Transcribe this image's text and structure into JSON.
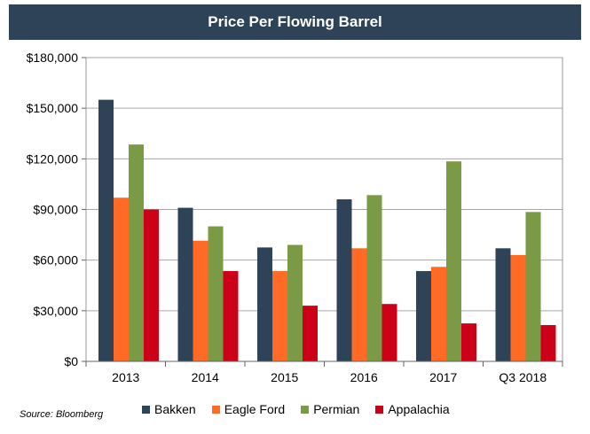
{
  "chart_data": {
    "type": "bar",
    "title": "Price Per Flowing Barrel",
    "categories": [
      "2013",
      "2014",
      "2015",
      "2016",
      "2017",
      "Q3 2018"
    ],
    "series": [
      {
        "name": "Bakken",
        "color": "#2e4358",
        "values": [
          155000,
          91000,
          67500,
          96000,
          53500,
          67000
        ]
      },
      {
        "name": "Eagle Ford",
        "color": "#ff6a24",
        "values": [
          97000,
          71500,
          53500,
          67000,
          56000,
          63000
        ]
      },
      {
        "name": "Permian",
        "color": "#7a9a45",
        "values": [
          128500,
          80000,
          69000,
          98500,
          118500,
          88500
        ]
      },
      {
        "name": "Appalachia",
        "color": "#cc0016",
        "values": [
          90000,
          53500,
          33000,
          34000,
          22500,
          21500
        ]
      }
    ],
    "ylim": [
      0,
      180000
    ],
    "yticks": [
      0,
      30000,
      60000,
      90000,
      120000,
      150000,
      180000
    ],
    "ytick_labels": [
      "$0",
      "$30,000",
      "$60,000",
      "$90,000",
      "$120,000",
      "$150,000",
      "$180,000"
    ],
    "xlabel": "",
    "ylabel": "",
    "grid": true,
    "legend_position": "bottom"
  },
  "source": "Source: Bloomberg"
}
